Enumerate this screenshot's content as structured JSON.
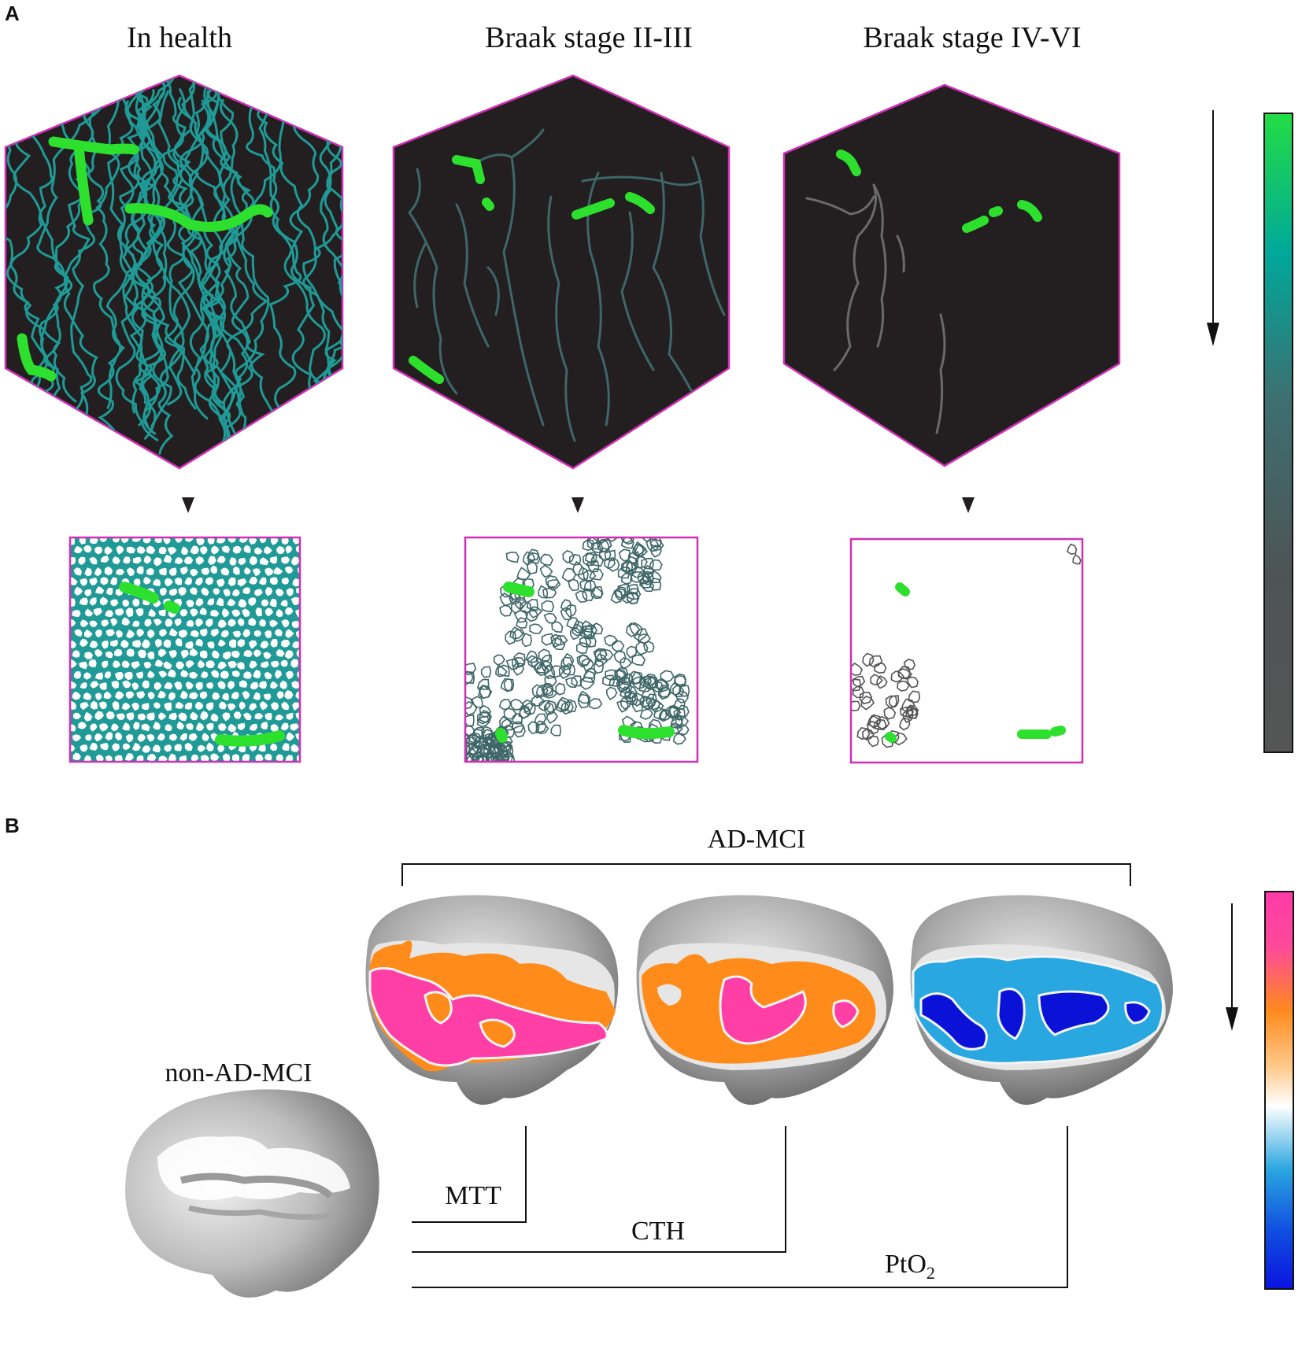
{
  "panel_a": {
    "letter": "A",
    "stages": [
      {
        "title": "In health"
      },
      {
        "title": "Braak stage II-III"
      },
      {
        "title": "Braak stage IV-VI"
      }
    ],
    "colorbar_colors": [
      "#22dd44",
      "#00a89a",
      "#3d6f70",
      "#4e5455",
      "#555555"
    ],
    "vessel_colors": {
      "health": "#1f9a96",
      "early": "#3f6668",
      "late": "#6a6a6a",
      "capillary_flow": "#2ee02e"
    }
  },
  "panel_b": {
    "letter": "B",
    "group_label": "AD-MCI",
    "control_label": "non-AD-MCI",
    "measures": [
      {
        "label": "MTT"
      },
      {
        "label": "CTH"
      },
      {
        "label": "PtO",
        "subscript": "2"
      }
    ],
    "colorbar_colors": [
      "#ff3aa8",
      "#ff8a1c",
      "#ffffff",
      "#2aa6e0",
      "#0a14e0"
    ],
    "map_colors": {
      "high": "#ff3fa6",
      "mid": "#ff8c1a",
      "low_light": "#28a7e1",
      "low_dark": "#0a12d8",
      "border": "#f4f4f4"
    }
  }
}
